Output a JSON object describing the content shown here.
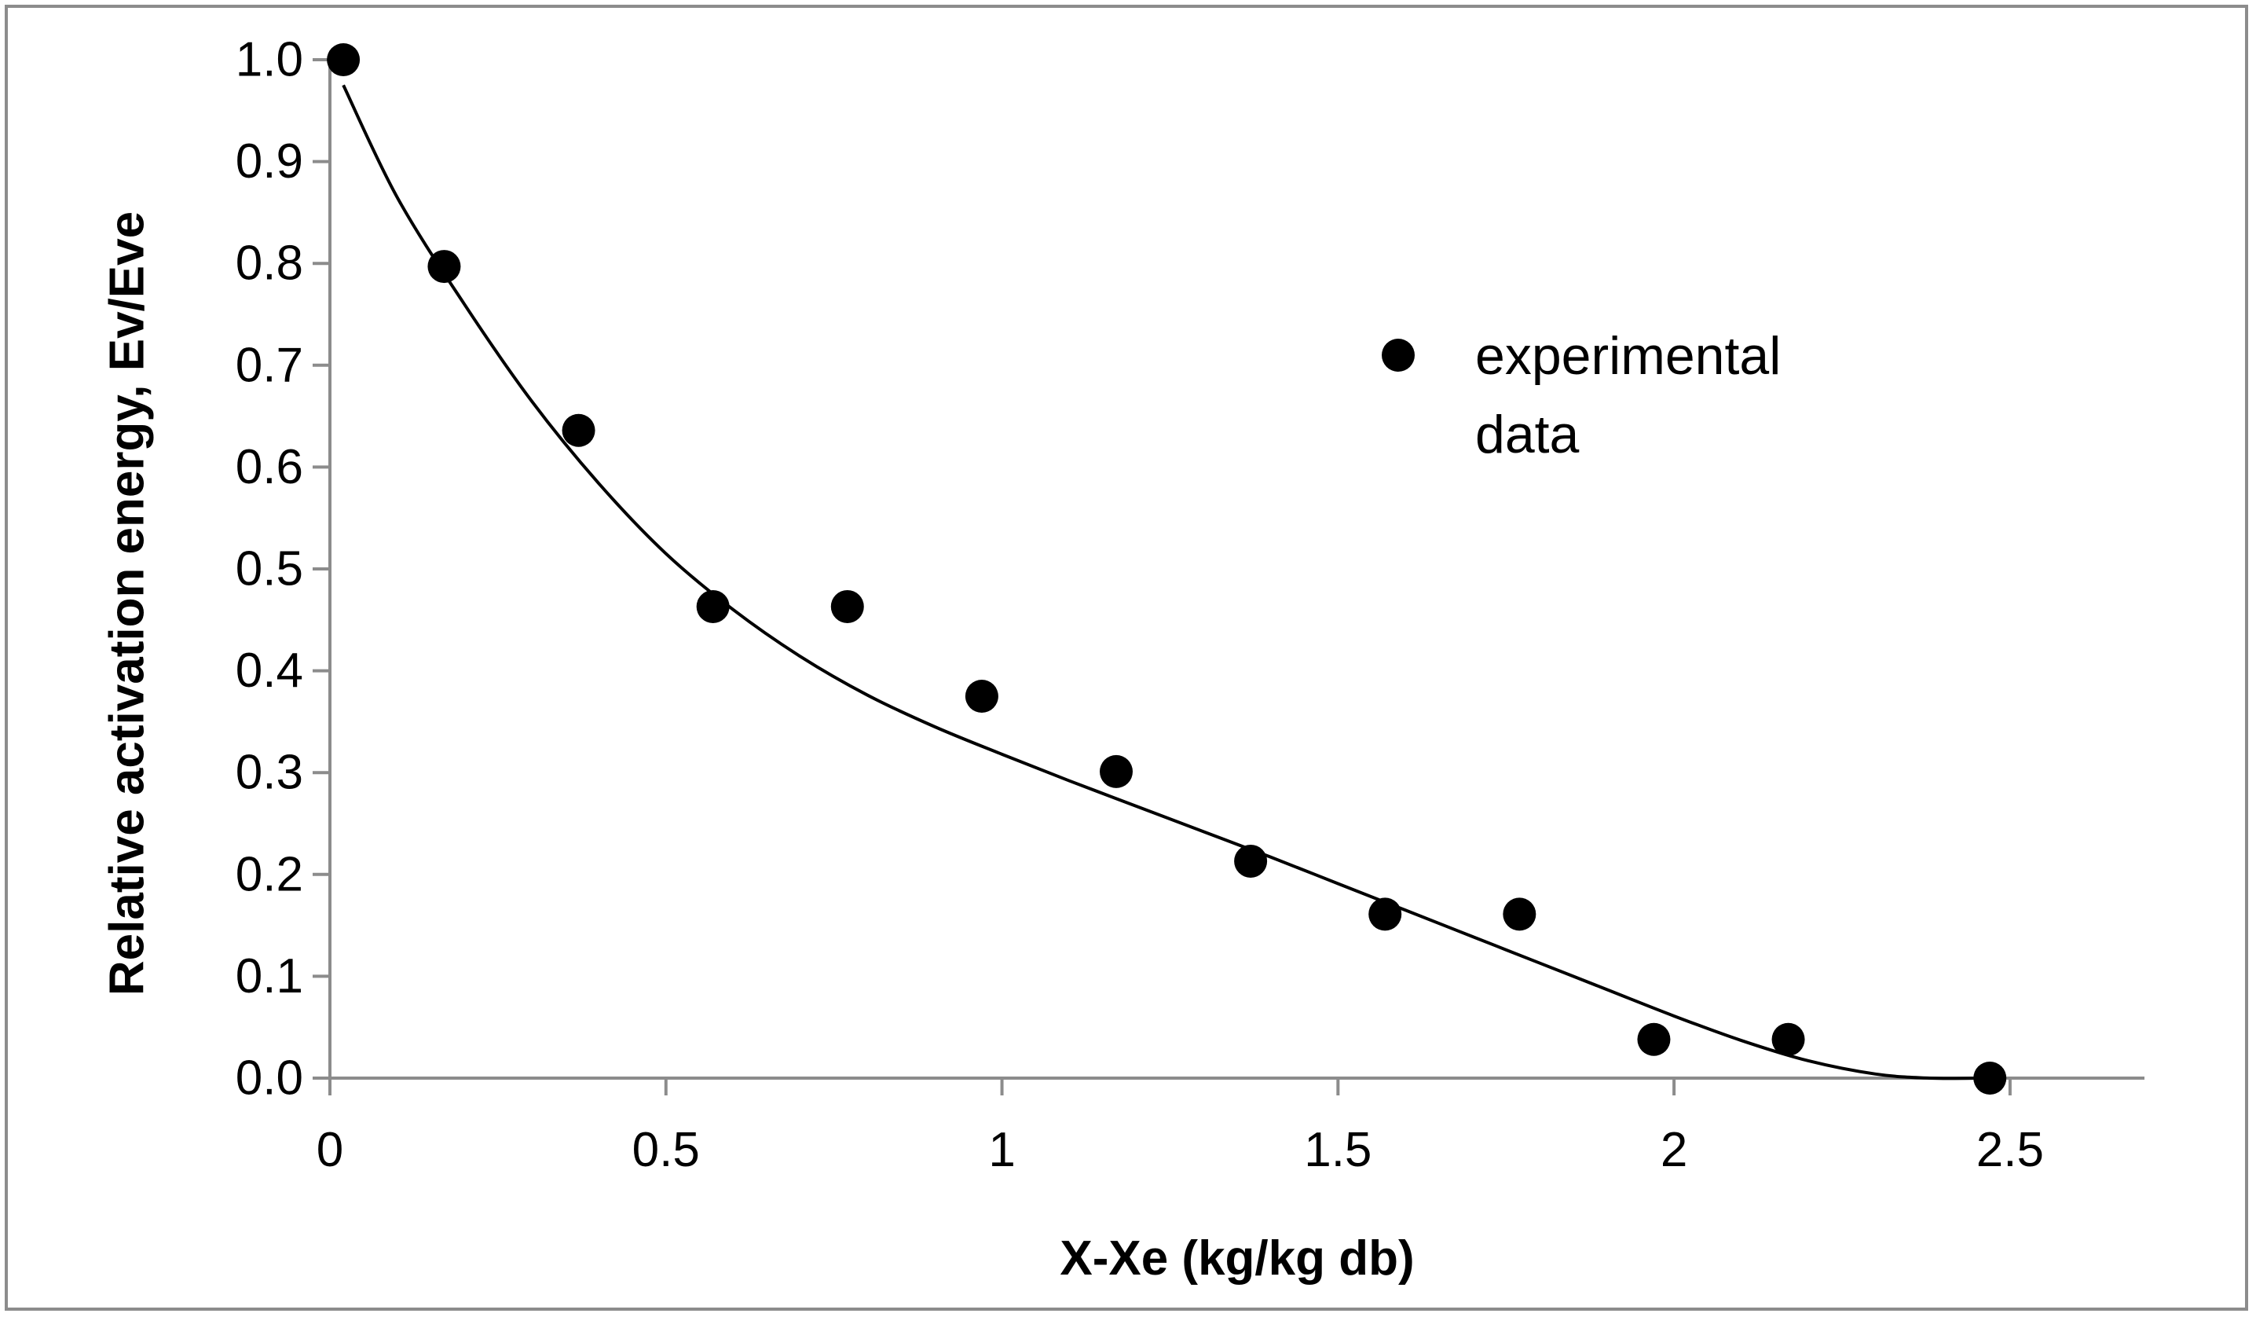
{
  "chart_data": {
    "type": "scatter",
    "title": "",
    "xlabel": "X-Xe (kg/kg db)",
    "ylabel": "Relative activation energy, Ev/Eve",
    "xlim": [
      0,
      2.7
    ],
    "ylim": [
      0,
      1.0
    ],
    "grid": false,
    "x_ticks": [
      0,
      0.5,
      1,
      1.5,
      2,
      2.5
    ],
    "x_tick_labels": [
      "0",
      "0.5",
      "1",
      "1.5",
      "2",
      "2.5"
    ],
    "y_ticks": [
      0,
      0.1,
      0.2,
      0.3,
      0.4,
      0.5,
      0.6,
      0.7,
      0.8,
      0.9,
      1.0
    ],
    "y_tick_labels": [
      "0.0",
      "0.1",
      "0.2",
      "0.3",
      "0.4",
      "0.5",
      "0.6",
      "0.7",
      "0.8",
      "0.9",
      "1.0"
    ],
    "legend": {
      "position": "right-center",
      "entries": [
        "experimental",
        "data"
      ]
    },
    "series": [
      {
        "name": "experimental data",
        "kind": "points",
        "color": "#000000",
        "x": [
          0.02,
          0.17,
          0.37,
          0.57,
          0.77,
          0.97,
          1.17,
          1.37,
          1.57,
          1.77,
          1.97,
          2.17,
          2.47
        ],
        "y": [
          1.0,
          0.797,
          0.636,
          0.463,
          0.463,
          0.375,
          0.301,
          0.213,
          0.161,
          0.161,
          0.038,
          0.038,
          0.0
        ]
      },
      {
        "name": "fitted curve",
        "kind": "line",
        "color": "#000000",
        "x": [
          0.02,
          0.1,
          0.2,
          0.3,
          0.4,
          0.5,
          0.6,
          0.7,
          0.8,
          0.9,
          1.0,
          1.1,
          1.2,
          1.3,
          1.4,
          1.5,
          1.6,
          1.7,
          1.8,
          1.9,
          2.0,
          2.1,
          2.2,
          2.3,
          2.38,
          2.46
        ],
        "y": [
          0.975,
          0.865,
          0.76,
          0.665,
          0.584,
          0.515,
          0.46,
          0.414,
          0.376,
          0.345,
          0.318,
          0.292,
          0.267,
          0.242,
          0.217,
          0.191,
          0.165,
          0.139,
          0.113,
          0.087,
          0.061,
          0.037,
          0.017,
          0.004,
          0.0,
          0.0
        ]
      }
    ]
  }
}
